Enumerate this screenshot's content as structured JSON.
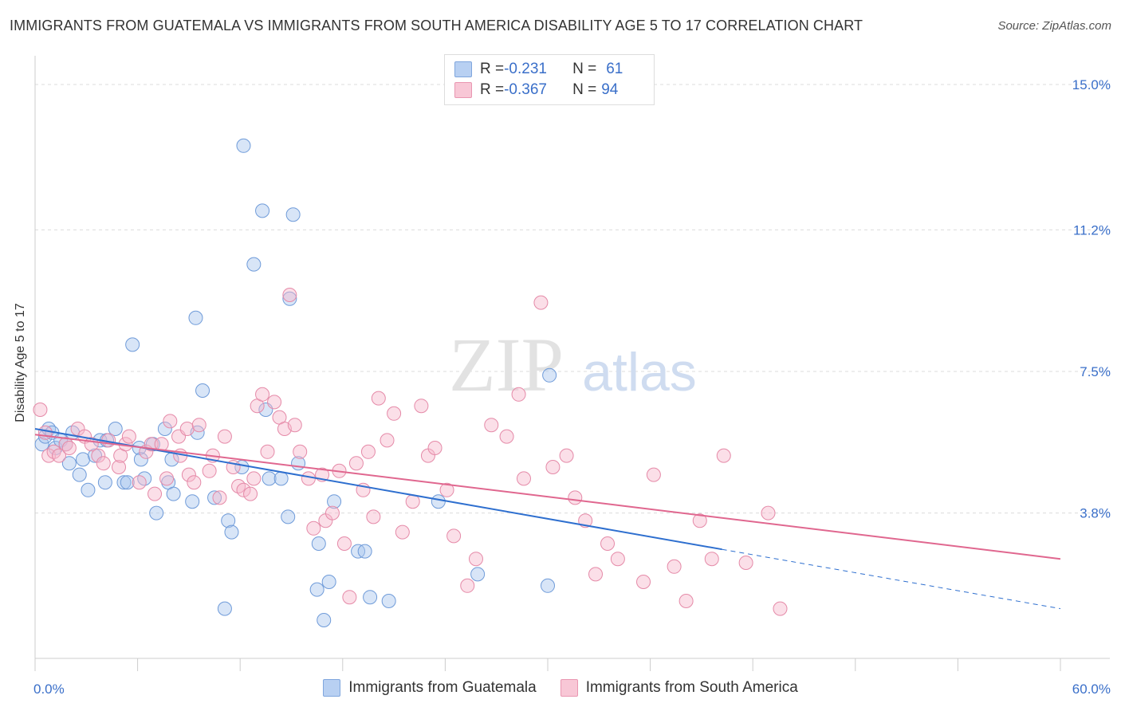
{
  "title": "IMMIGRANTS FROM GUATEMALA VS IMMIGRANTS FROM SOUTH AMERICA DISABILITY AGE 5 TO 17 CORRELATION CHART",
  "source": "Source: ZipAtlas.com",
  "watermark": {
    "zip": "ZIP",
    "atlas": "atlas"
  },
  "legend": {
    "series1": {
      "r_label": "R = ",
      "r_value": "-0.231",
      "n_label": "N = ",
      "n_value": "61"
    },
    "series2": {
      "r_label": "R = ",
      "r_value": "-0.367",
      "n_label": "N = ",
      "n_value": "94"
    }
  },
  "chart_data": {
    "type": "scatter",
    "title": "IMMIGRANTS FROM GUATEMALA VS IMMIGRANTS FROM SOUTH AMERICA DISABILITY AGE 5 TO 17 CORRELATION CHART",
    "xlabel": "",
    "ylabel": "Disability Age 5 to 17",
    "xlim": [
      0,
      60
    ],
    "ylim": [
      0,
      15.75
    ],
    "x_tick_labels": [
      "0.0%",
      "60.0%"
    ],
    "y_ticks": [
      3.8,
      7.5,
      11.2,
      15.0
    ],
    "y_tick_labels": [
      "3.8%",
      "7.5%",
      "11.2%",
      "15.0%"
    ],
    "grid": "horizontal dashed",
    "legend_position": "top-center",
    "series": [
      {
        "name": "Immigrants from Guatemala",
        "color": "#a9c6ee",
        "edge_color": "#6f9bd9",
        "line_color": "#2e6fcf",
        "r": -0.231,
        "n": 61,
        "trend": {
          "x_start": 0,
          "y_start": 6.0,
          "x_solid_end": 40.2,
          "y_solid_end": 2.85,
          "x_end": 60,
          "y_end": 1.3
        },
        "points": [
          [
            0.4,
            5.6
          ],
          [
            0.6,
            5.8
          ],
          [
            0.8,
            6.0
          ],
          [
            1.0,
            5.9
          ],
          [
            1.2,
            5.5
          ],
          [
            1.5,
            5.7
          ],
          [
            1.8,
            5.6
          ],
          [
            2.0,
            5.1
          ],
          [
            2.2,
            5.9
          ],
          [
            2.6,
            4.8
          ],
          [
            2.8,
            5.2
          ],
          [
            3.1,
            4.4
          ],
          [
            3.5,
            5.3
          ],
          [
            3.8,
            5.7
          ],
          [
            4.1,
            4.6
          ],
          [
            4.2,
            5.7
          ],
          [
            4.7,
            6.0
          ],
          [
            5.2,
            4.6
          ],
          [
            5.4,
            4.6
          ],
          [
            5.7,
            8.2
          ],
          [
            6.1,
            5.5
          ],
          [
            6.2,
            5.2
          ],
          [
            6.4,
            4.7
          ],
          [
            6.9,
            5.6
          ],
          [
            7.1,
            3.8
          ],
          [
            7.6,
            6.0
          ],
          [
            7.8,
            4.6
          ],
          [
            8.0,
            5.2
          ],
          [
            8.1,
            4.3
          ],
          [
            9.2,
            4.1
          ],
          [
            9.4,
            8.9
          ],
          [
            9.5,
            5.9
          ],
          [
            9.8,
            7.0
          ],
          [
            10.5,
            4.2
          ],
          [
            11.1,
            1.3
          ],
          [
            11.3,
            3.6
          ],
          [
            11.5,
            3.3
          ],
          [
            12.1,
            5.0
          ],
          [
            12.2,
            13.4
          ],
          [
            12.8,
            10.3
          ],
          [
            13.3,
            11.7
          ],
          [
            13.5,
            6.5
          ],
          [
            13.7,
            4.7
          ],
          [
            14.4,
            4.7
          ],
          [
            14.8,
            3.7
          ],
          [
            14.9,
            9.4
          ],
          [
            15.1,
            11.6
          ],
          [
            15.4,
            5.1
          ],
          [
            16.5,
            1.8
          ],
          [
            16.6,
            3.0
          ],
          [
            16.9,
            1.0
          ],
          [
            17.2,
            2.0
          ],
          [
            17.5,
            4.1
          ],
          [
            18.9,
            2.8
          ],
          [
            19.3,
            2.8
          ],
          [
            19.6,
            1.6
          ],
          [
            20.7,
            1.5
          ],
          [
            23.6,
            4.1
          ],
          [
            25.9,
            2.2
          ],
          [
            30.0,
            1.9
          ],
          [
            30.1,
            7.4
          ]
        ]
      },
      {
        "name": "Immigrants from South America",
        "color": "#f6b9cc",
        "edge_color": "#e58aa8",
        "line_color": "#e0678f",
        "r": -0.367,
        "n": 94,
        "trend": {
          "x_start": 0,
          "y_start": 5.85,
          "x_end": 60,
          "y_end": 2.6
        },
        "points": [
          [
            0.3,
            6.5
          ],
          [
            0.6,
            5.9
          ],
          [
            0.8,
            5.3
          ],
          [
            1.1,
            5.4
          ],
          [
            1.4,
            5.3
          ],
          [
            1.8,
            5.6
          ],
          [
            2.0,
            5.5
          ],
          [
            2.5,
            6.0
          ],
          [
            2.9,
            5.8
          ],
          [
            3.3,
            5.6
          ],
          [
            3.7,
            5.3
          ],
          [
            4.0,
            5.1
          ],
          [
            4.3,
            5.7
          ],
          [
            4.9,
            5.0
          ],
          [
            5.0,
            5.3
          ],
          [
            5.3,
            5.6
          ],
          [
            5.5,
            5.8
          ],
          [
            6.1,
            4.6
          ],
          [
            6.5,
            5.4
          ],
          [
            6.8,
            5.6
          ],
          [
            7.0,
            4.3
          ],
          [
            7.4,
            5.6
          ],
          [
            7.7,
            4.7
          ],
          [
            7.9,
            6.2
          ],
          [
            8.4,
            5.8
          ],
          [
            8.5,
            5.3
          ],
          [
            8.9,
            6.0
          ],
          [
            9.0,
            4.8
          ],
          [
            9.3,
            4.6
          ],
          [
            9.6,
            6.1
          ],
          [
            10.2,
            4.9
          ],
          [
            10.4,
            5.3
          ],
          [
            10.8,
            4.2
          ],
          [
            11.1,
            5.8
          ],
          [
            11.6,
            5.0
          ],
          [
            11.9,
            4.5
          ],
          [
            12.2,
            4.4
          ],
          [
            12.6,
            4.3
          ],
          [
            12.8,
            4.7
          ],
          [
            13.0,
            6.6
          ],
          [
            13.3,
            6.9
          ],
          [
            13.6,
            5.4
          ],
          [
            14.0,
            6.7
          ],
          [
            14.3,
            6.3
          ],
          [
            14.6,
            6.0
          ],
          [
            14.9,
            9.5
          ],
          [
            15.2,
            6.1
          ],
          [
            15.5,
            5.4
          ],
          [
            16.0,
            4.7
          ],
          [
            16.3,
            3.4
          ],
          [
            16.8,
            4.8
          ],
          [
            17.0,
            3.6
          ],
          [
            17.4,
            3.8
          ],
          [
            17.8,
            4.9
          ],
          [
            18.1,
            3.0
          ],
          [
            18.4,
            1.6
          ],
          [
            18.8,
            5.1
          ],
          [
            19.2,
            4.4
          ],
          [
            19.5,
            5.4
          ],
          [
            19.8,
            3.7
          ],
          [
            20.1,
            6.8
          ],
          [
            20.6,
            5.7
          ],
          [
            21.0,
            6.4
          ],
          [
            21.5,
            3.3
          ],
          [
            22.1,
            4.1
          ],
          [
            22.6,
            6.6
          ],
          [
            23.0,
            5.3
          ],
          [
            23.4,
            5.5
          ],
          [
            24.1,
            4.4
          ],
          [
            24.5,
            3.2
          ],
          [
            25.3,
            1.9
          ],
          [
            25.8,
            2.6
          ],
          [
            26.7,
            6.1
          ],
          [
            27.6,
            5.8
          ],
          [
            28.3,
            6.9
          ],
          [
            28.6,
            4.7
          ],
          [
            29.6,
            9.3
          ],
          [
            30.3,
            5.0
          ],
          [
            31.1,
            5.3
          ],
          [
            31.6,
            4.2
          ],
          [
            32.2,
            3.6
          ],
          [
            32.8,
            2.2
          ],
          [
            33.5,
            3.0
          ],
          [
            34.1,
            2.6
          ],
          [
            35.6,
            2.0
          ],
          [
            36.2,
            4.8
          ],
          [
            37.4,
            2.4
          ],
          [
            38.1,
            1.5
          ],
          [
            38.9,
            3.6
          ],
          [
            39.6,
            2.6
          ],
          [
            40.3,
            5.3
          ],
          [
            41.6,
            2.5
          ],
          [
            42.9,
            3.8
          ],
          [
            43.6,
            1.3
          ]
        ]
      }
    ]
  }
}
